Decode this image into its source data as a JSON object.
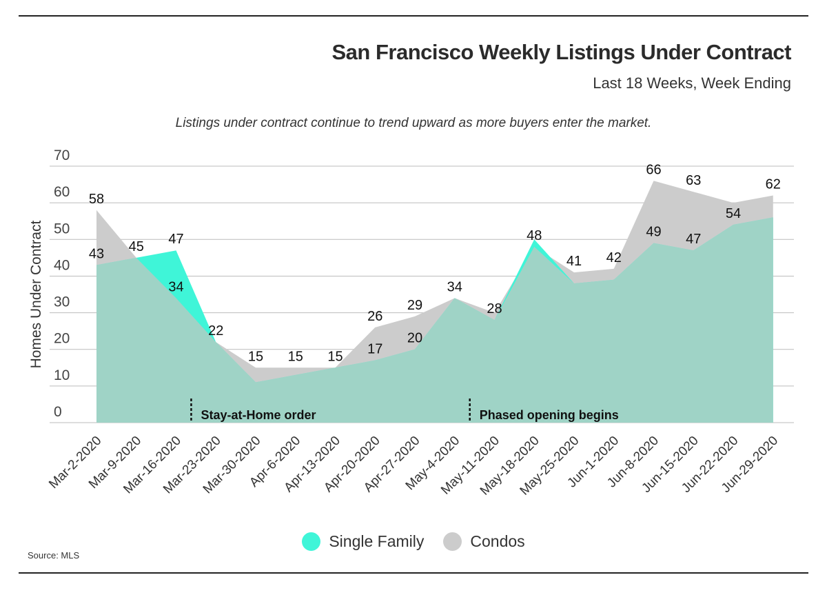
{
  "header": {
    "title": "San Francisco Weekly Listings Under Contract",
    "subtitle": "Last 18 Weeks, Week Ending",
    "note": "Listings under contract continue to trend upward as more buyers enter the market."
  },
  "footer": {
    "source": "Source: MLS"
  },
  "colors": {
    "single_family": "#3ff5d8",
    "condos": "#cccccc",
    "overlap": "#9fd3c6",
    "grid": "#bbbbbb"
  },
  "chart_data": {
    "type": "area",
    "title": "San Francisco Weekly Listings Under Contract",
    "subtitle": "Last 18 Weeks, Week Ending",
    "xlabel": "",
    "ylabel": "Homes Under Contract",
    "ylim": [
      0,
      70
    ],
    "yticks": [
      0,
      10,
      20,
      30,
      40,
      50,
      60,
      70
    ],
    "grid": true,
    "legend_position": "bottom-center",
    "categories": [
      "Mar-2-2020",
      "Mar-9-2020",
      "Mar-16-2020",
      "Mar-23-2020",
      "Mar-30-2020",
      "Apr-6-2020",
      "Apr-13-2020",
      "Apr-20-2020",
      "Apr-27-2020",
      "May-4-2020",
      "May-11-2020",
      "May-18-2020",
      "May-25-2020",
      "Jun-1-2020",
      "Jun-8-2020",
      "Jun-15-2020",
      "Jun-22-2020",
      "Jun-29-2020"
    ],
    "series": [
      {
        "name": "Single Family",
        "values": [
          43,
          45,
          47,
          22,
          11,
          13,
          15,
          17,
          20,
          34,
          28,
          50,
          38,
          39,
          49,
          47,
          54,
          56
        ]
      },
      {
        "name": "Condos",
        "values": [
          58,
          45,
          34,
          22,
          15,
          15,
          15,
          26,
          29,
          34,
          30,
          48,
          41,
          42,
          66,
          63,
          60,
          62
        ]
      }
    ],
    "data_labels": [
      {
        "category": "Mar-2-2020",
        "value": 58,
        "text": "58"
      },
      {
        "category": "Mar-2-2020",
        "value": 43,
        "text": "43"
      },
      {
        "category": "Mar-9-2020",
        "value": 45,
        "text": "45"
      },
      {
        "category": "Mar-16-2020",
        "value": 47,
        "text": "47"
      },
      {
        "category": "Mar-16-2020",
        "value": 34,
        "text": "34"
      },
      {
        "category": "Mar-23-2020",
        "value": 22,
        "text": "22"
      },
      {
        "category": "Mar-30-2020",
        "value": 15,
        "text": "15"
      },
      {
        "category": "Apr-6-2020",
        "value": 15,
        "text": "15"
      },
      {
        "category": "Apr-13-2020",
        "value": 15,
        "text": "15"
      },
      {
        "category": "Apr-20-2020",
        "value": 26,
        "text": "26"
      },
      {
        "category": "Apr-20-2020",
        "value": 17,
        "text": "17"
      },
      {
        "category": "Apr-27-2020",
        "value": 29,
        "text": "29"
      },
      {
        "category": "Apr-27-2020",
        "value": 20,
        "text": "20"
      },
      {
        "category": "May-4-2020",
        "value": 34,
        "text": "34"
      },
      {
        "category": "May-11-2020",
        "value": 28,
        "text": "28"
      },
      {
        "category": "May-18-2020",
        "value": 48,
        "text": "48"
      },
      {
        "category": "May-25-2020",
        "value": 41,
        "text": "41"
      },
      {
        "category": "Jun-1-2020",
        "value": 42,
        "text": "42"
      },
      {
        "category": "Jun-8-2020",
        "value": 66,
        "text": "66"
      },
      {
        "category": "Jun-8-2020",
        "value": 49,
        "text": "49"
      },
      {
        "category": "Jun-15-2020",
        "value": 63,
        "text": "63"
      },
      {
        "category": "Jun-15-2020",
        "value": 47,
        "text": "47"
      },
      {
        "category": "Jun-22-2020",
        "value": 54,
        "text": "54"
      },
      {
        "category": "Jun-29-2020",
        "value": 62,
        "text": "62"
      }
    ],
    "annotations": [
      {
        "after_category": "Mar-16-2020",
        "text": "Stay-at-Home order"
      },
      {
        "after_category": "May-4-2020",
        "text": "Phased opening begins"
      }
    ]
  }
}
